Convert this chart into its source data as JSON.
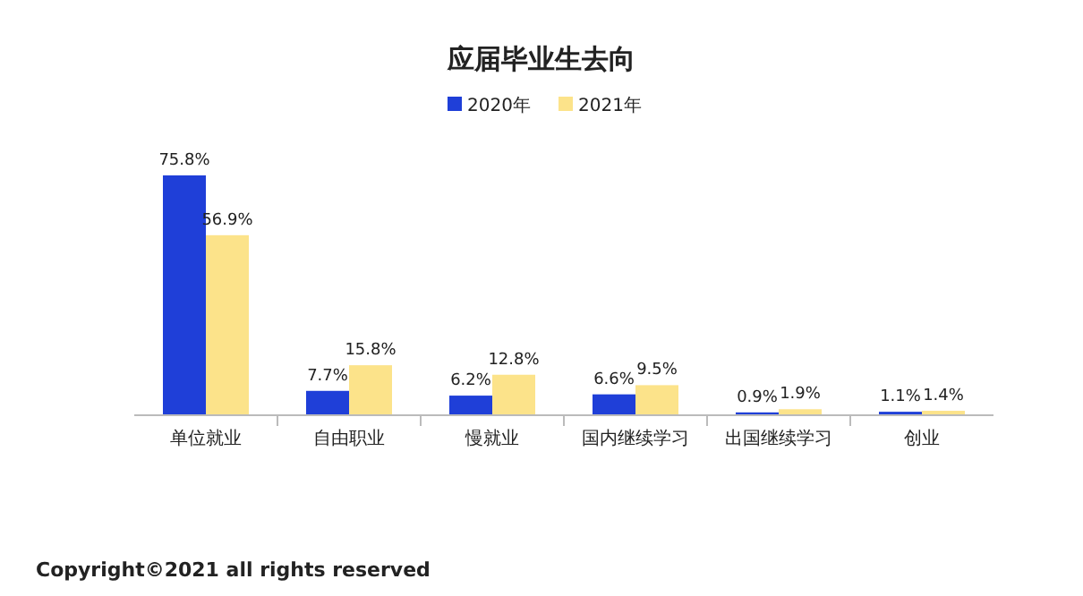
{
  "chart_data": {
    "type": "bar",
    "title": "应届毕业生去向",
    "categories": [
      "单位就业",
      "自由职业",
      "慢就业",
      "国内继续学习",
      "出国继续学习",
      "创业"
    ],
    "series": [
      {
        "name": "2020年",
        "color": "#1f3fd8",
        "values": [
          75.8,
          7.7,
          6.2,
          6.6,
          0.9,
          1.1
        ],
        "value_labels": [
          "75.8%",
          "7.7%",
          "6.2%",
          "6.6%",
          "0.9%",
          "1.1%"
        ]
      },
      {
        "name": "2021年",
        "color": "#fce38a",
        "values": [
          56.9,
          15.8,
          12.8,
          9.5,
          1.9,
          1.4
        ],
        "value_labels": [
          "56.9%",
          "15.8%",
          "12.8%",
          "9.5%",
          "1.9%",
          "1.4%"
        ]
      }
    ],
    "legend": "top",
    "annotations": [
      "Copyright©2021 all rights reserved"
    ]
  }
}
